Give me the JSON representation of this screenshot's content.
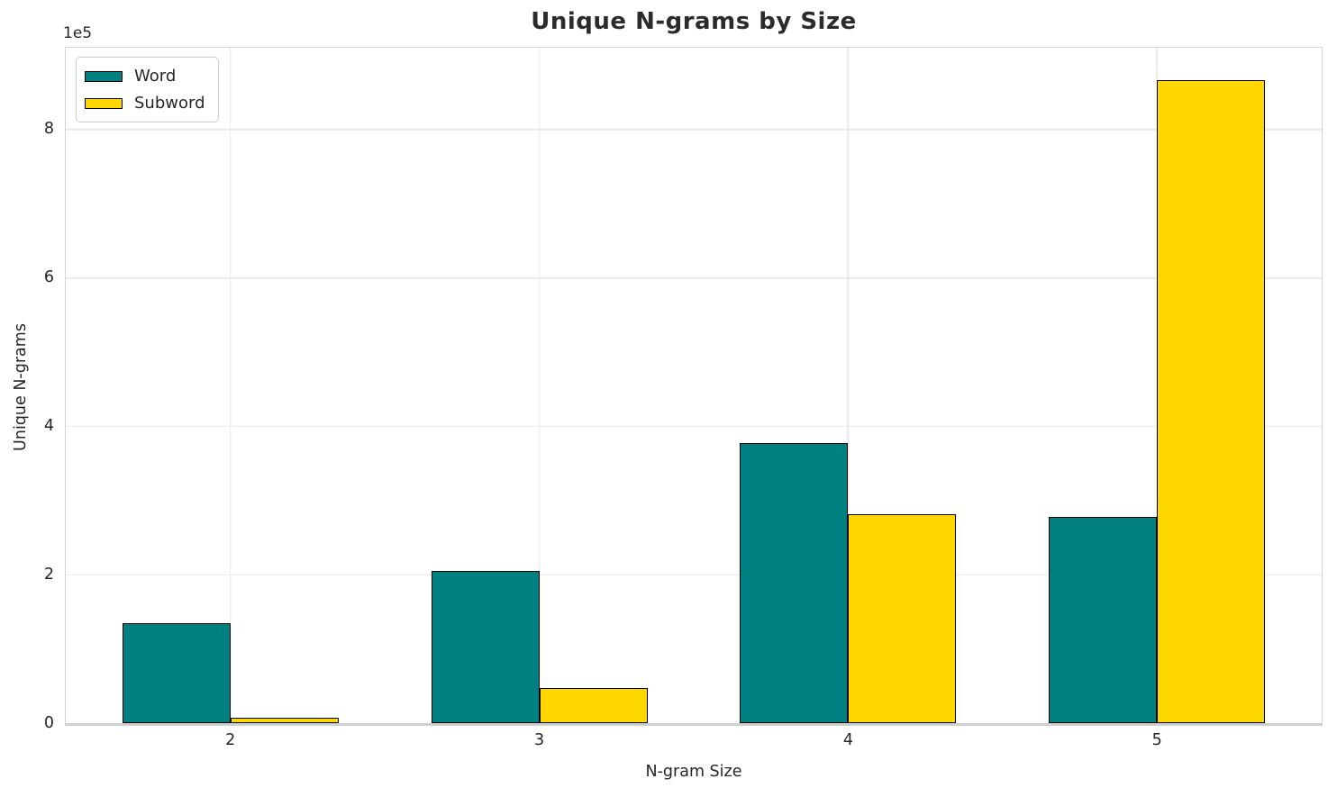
{
  "chart_data": {
    "type": "bar",
    "title": "Unique N-grams by Size",
    "xlabel": "N-gram Size",
    "ylabel": "Unique N-grams",
    "y_offset_text": "1e5",
    "categories": [
      "2",
      "3",
      "4",
      "5"
    ],
    "series": [
      {
        "name": "Word",
        "color": "#008080",
        "values": [
          135000,
          205500,
          377500,
          278000
        ]
      },
      {
        "name": "Subword",
        "color": "#FFD700",
        "values": [
          7000,
          47500,
          281000,
          866000
        ]
      }
    ],
    "ylim": [
      0,
      910000
    ],
    "yticks": [
      0,
      200000,
      400000,
      600000,
      800000
    ],
    "ytick_labels": [
      "0",
      "2",
      "4",
      "6",
      "8"
    ],
    "bar_width_units": 0.35,
    "x_margin_units": 0.533,
    "grid": true,
    "legend_position": "upper left",
    "bar_edge_color": "#000000"
  },
  "legend": {
    "items": [
      {
        "label": "Word",
        "color": "#008080"
      },
      {
        "label": "Subword",
        "color": "#FFD700"
      }
    ]
  }
}
